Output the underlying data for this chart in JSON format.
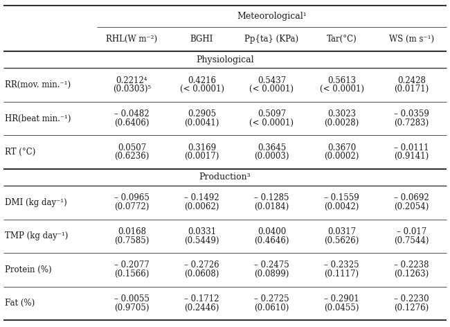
{
  "col_header_top": "Meteorological¹",
  "col_header_sub": [
    "RHL(W m⁻²)",
    "BGHI",
    "Pp{ta} (KPa)",
    "Tar(°C)",
    "WS (m s⁻¹)"
  ],
  "section_physiological": "Physiological",
  "section_production": "Production³",
  "row_labels": [
    "RR(mov. min.⁻¹)",
    "HR(beat min.⁻¹)",
    "RT (°C)",
    "DMI (kg day⁻¹)",
    "TMP (kg day⁻¹)",
    "Protein (%)",
    "Fat (%)"
  ],
  "cell_line1": [
    [
      "0.2212⁴",
      "0.4216",
      "0.5437",
      "0.5613",
      "0.2428"
    ],
    [
      "– 0.0482",
      "0.2905",
      "0.5097",
      "0.3023",
      "– 0.0359"
    ],
    [
      "0.0507",
      "0.3169",
      "0.3645",
      "0.3670",
      "– 0.0111"
    ],
    [
      "– 0.0965",
      "– 0.1492",
      "– 0.1285",
      "– 0.1559",
      "– 0.0692"
    ],
    [
      "0.0168",
      "0.0331",
      "0.0400",
      "0.0317",
      "– 0.017"
    ],
    [
      "– 0.2077",
      "– 0.2726",
      "– 0.2475",
      "– 0.2325",
      "– 0.2238"
    ],
    [
      "– 0.0055",
      "– 0.1712",
      "– 0.2725",
      "– 0.2901",
      "– 0.2230"
    ]
  ],
  "cell_line2": [
    [
      "(0.0303)⁵",
      "(< 0.0001)",
      "(< 0.0001)",
      "(< 0.0001)",
      "(0.0171)"
    ],
    [
      "(0.6406)",
      "(0.0041)",
      "(< 0.0001)",
      "(0.0028)",
      "(0.7283)"
    ],
    [
      "(0.6236)",
      "(0.0017)",
      "(0.0003)",
      "(0.0002)",
      "(0.9141)"
    ],
    [
      "(0.0772)",
      "(0.0062)",
      "(0.0184)",
      "(0.0042)",
      "(0.2054)"
    ],
    [
      "(0.7585)",
      "(0.5449)",
      "(0.4646)",
      "(0.5626)",
      "(0.7544)"
    ],
    [
      "(0.1566)",
      "(0.0608)",
      "(0.0899)",
      "(0.1117)",
      "(0.1263)"
    ],
    [
      "(0.9705)",
      "(0.2446)",
      "(0.0610)",
      "(0.0455)",
      "(0.1276)"
    ]
  ],
  "bg_color": "#ffffff",
  "text_color": "#1a1a1a",
  "font_size": 8.5,
  "header_font_size": 9.0
}
